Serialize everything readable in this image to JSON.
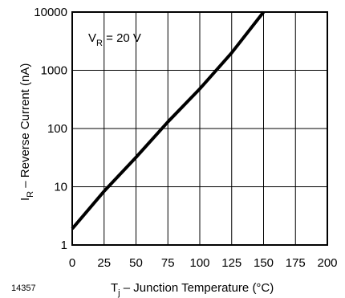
{
  "chart_data": {
    "type": "line",
    "xlabel": {
      "main": "T",
      "sub": "j",
      "rest": " – Junction Temperature (°C)"
    },
    "ylabel": {
      "main": "I",
      "sub": "R",
      "rest": " – Reverse Current (nA)"
    },
    "annotation": {
      "main": "V",
      "sub": "R",
      "rest": " = 20 V"
    },
    "figure_id": "14357",
    "xlim": [
      0,
      200
    ],
    "ylim": [
      1,
      10000
    ],
    "yscale": "log",
    "grid": true,
    "x_ticks": [
      0,
      25,
      50,
      75,
      100,
      125,
      150,
      175,
      200
    ],
    "y_ticks": [
      1,
      10,
      100,
      1000,
      10000
    ],
    "x_grid": [
      25,
      50,
      75,
      100,
      125,
      150,
      175
    ],
    "y_grid": [
      10,
      100,
      1000
    ],
    "series": [
      {
        "x": [
          0,
          25,
          50,
          75,
          100,
          125,
          150
        ],
        "y": [
          1.9,
          8.4,
          32,
          130,
          480,
          2000,
          10000
        ]
      }
    ]
  }
}
